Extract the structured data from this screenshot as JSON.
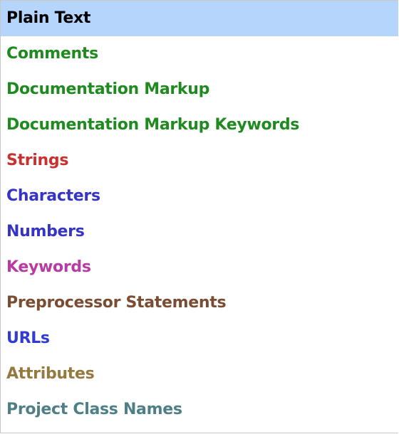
{
  "font_categories": {
    "items": [
      {
        "label": "Plain Text",
        "color": "#000000",
        "selected": true
      },
      {
        "label": "Comments",
        "color": "#1f8a1f",
        "selected": false
      },
      {
        "label": "Documentation Markup",
        "color": "#1f8a1f",
        "selected": false
      },
      {
        "label": "Documentation Markup Keywords",
        "color": "#1f8a1f",
        "selected": false
      },
      {
        "label": "Strings",
        "color": "#c8312d",
        "selected": false
      },
      {
        "label": "Characters",
        "color": "#3534c5",
        "selected": false
      },
      {
        "label": "Numbers",
        "color": "#3534c5",
        "selected": false
      },
      {
        "label": "Keywords",
        "color": "#b83aa3",
        "selected": false
      },
      {
        "label": "Preprocessor Statements",
        "color": "#7a4d33",
        "selected": false
      },
      {
        "label": "URLs",
        "color": "#2f3ad9",
        "selected": false
      },
      {
        "label": "Attributes",
        "color": "#957a3f",
        "selected": false
      },
      {
        "label": "Project Class Names",
        "color": "#4f7f86",
        "selected": false
      }
    ],
    "selection_color": "#b5d5fd"
  }
}
